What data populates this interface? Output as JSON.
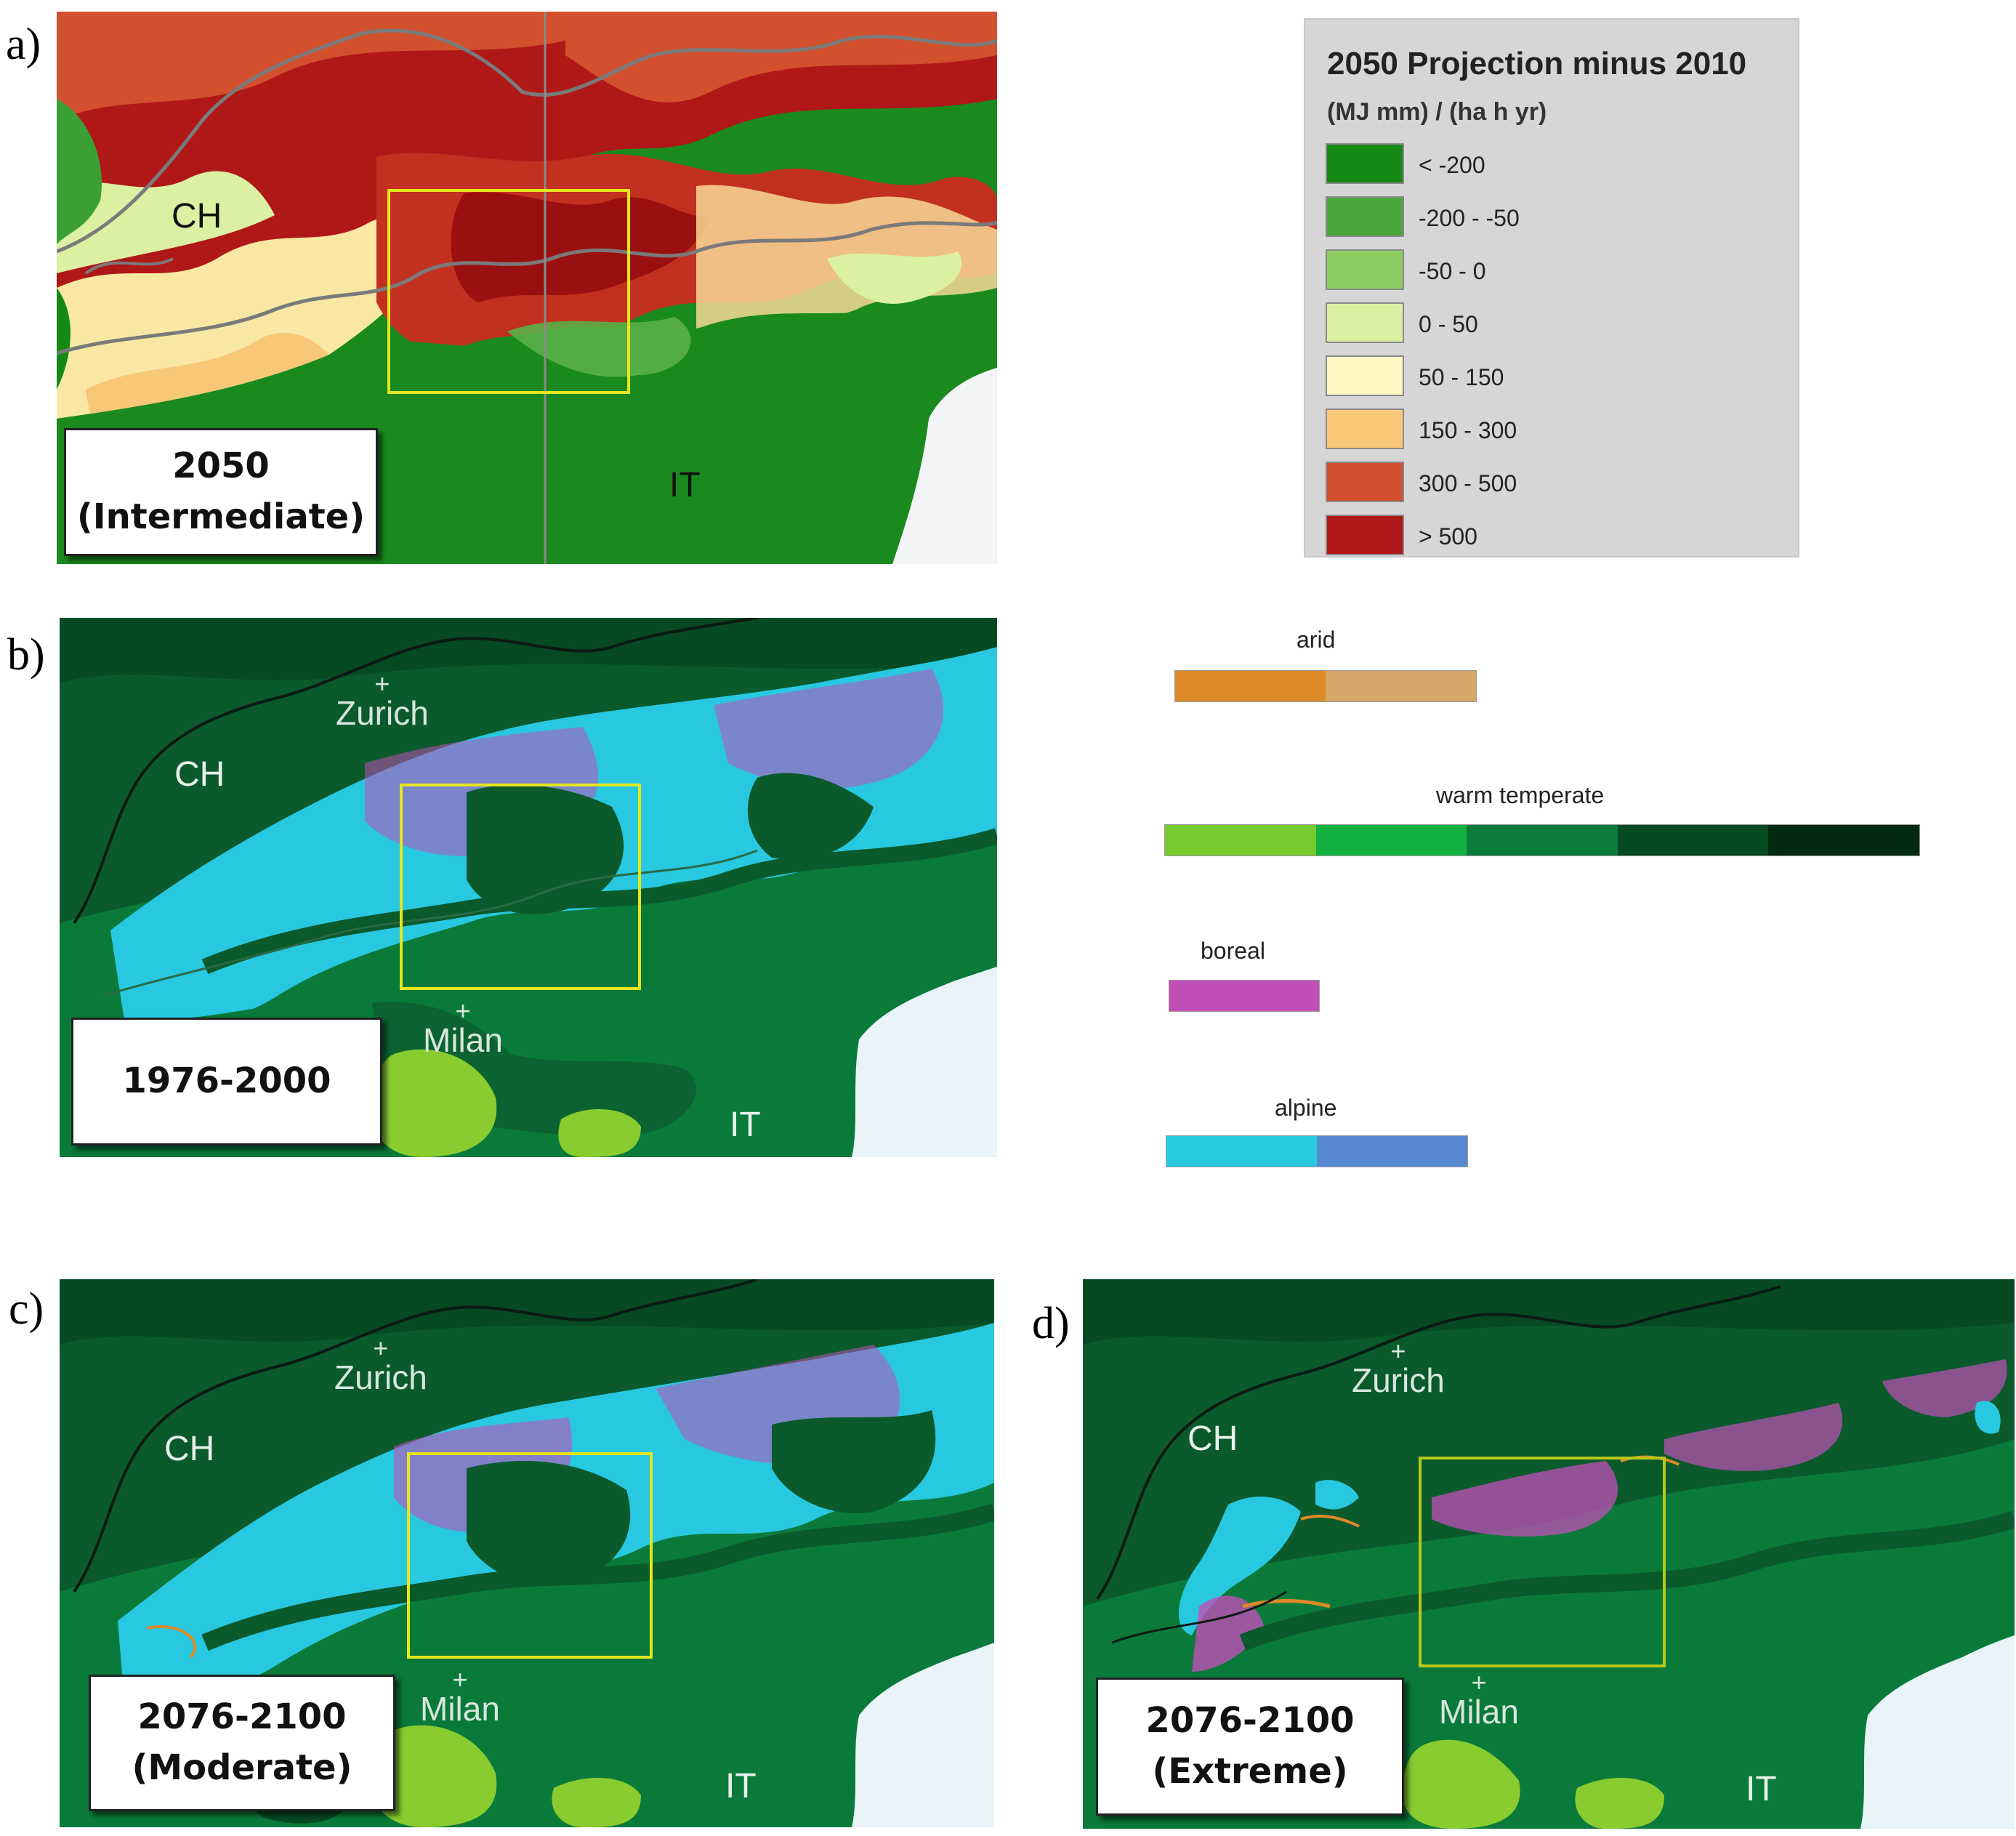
{
  "panels": {
    "a": {
      "letter": "a)",
      "country_labels": [
        "CH",
        "IT"
      ],
      "period": [
        "2050",
        "(Intermediate)"
      ],
      "legend": {
        "title": "2050 Projection minus 2010",
        "unit": "(MJ mm) / (ha h yr)",
        "classes": [
          {
            "label": "< -200",
            "color": "#148a14"
          },
          {
            "label": "-200 - -50",
            "color": "#4aa83a"
          },
          {
            "label": "-50 - 0",
            "color": "#8ccc62"
          },
          {
            "label": "0 - 50",
            "color": "#dcf0a4"
          },
          {
            "label": "50 - 150",
            "color": "#fff8c4"
          },
          {
            "label": "150 - 300",
            "color": "#f8c878"
          },
          {
            "label": "300 - 500",
            "color": "#d2502e"
          },
          {
            "label": "> 500",
            "color": "#b01818"
          }
        ]
      }
    },
    "b": {
      "letter": "b)",
      "country_labels": [
        "CH",
        "IT"
      ],
      "cities": [
        "Zurich",
        "Milan"
      ],
      "period": [
        "1976-2000"
      ]
    },
    "c": {
      "letter": "c)",
      "country_labels": [
        "CH",
        "IT"
      ],
      "cities": [
        "Zurich",
        "Milan"
      ],
      "period": [
        "2076-2100",
        "(Moderate)"
      ]
    },
    "d": {
      "letter": "d)",
      "country_labels": [
        "CH",
        "IT"
      ],
      "cities": [
        "Zurich",
        "Milan"
      ],
      "period": [
        "2076-2100",
        "(Extreme)"
      ]
    }
  },
  "climate_legend": [
    {
      "name": "arid",
      "colors": [
        "#dc8a28",
        "#d4a868"
      ]
    },
    {
      "name": "warm temperate",
      "colors": [
        "#78c830",
        "#12b040",
        "#0a7c3c",
        "#064a22",
        "#022a10"
      ]
    },
    {
      "name": "boreal",
      "colors": [
        "#c050b8"
      ]
    },
    {
      "name": "alpine",
      "colors": [
        "#28c8e0",
        "#5888d0"
      ]
    }
  ]
}
